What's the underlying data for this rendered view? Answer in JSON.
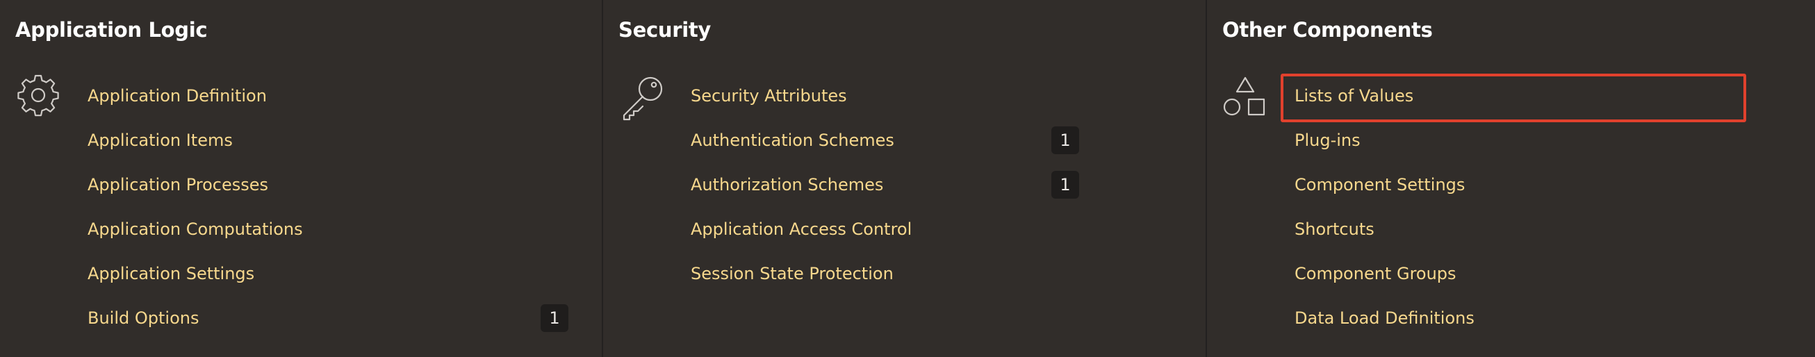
{
  "application_logic": {
    "title": "Application Logic",
    "icon": "gear-icon",
    "links": [
      {
        "label": "Application Definition"
      },
      {
        "label": "Application Items"
      },
      {
        "label": "Application Processes"
      },
      {
        "label": "Application Computations"
      },
      {
        "label": "Application Settings"
      },
      {
        "label": "Build Options",
        "count": "1"
      }
    ]
  },
  "security": {
    "title": "Security",
    "icon": "key-icon",
    "links": [
      {
        "label": "Security Attributes"
      },
      {
        "label": "Authentication Schemes",
        "count": "1"
      },
      {
        "label": "Authorization Schemes",
        "count": "1"
      },
      {
        "label": "Application Access Control"
      },
      {
        "label": "Session State Protection"
      }
    ]
  },
  "other_components": {
    "title": "Other Components",
    "icon": "shapes-icon",
    "links": [
      {
        "label": "Lists of Values",
        "highlighted": true
      },
      {
        "label": "Plug-ins"
      },
      {
        "label": "Component Settings"
      },
      {
        "label": "Shortcuts"
      },
      {
        "label": "Component Groups"
      },
      {
        "label": "Data Load Definitions"
      }
    ]
  },
  "colors": {
    "background": "#312d2a",
    "link": "#f7d88d",
    "title": "#ffffff",
    "badge_bg": "#1f1d1c",
    "highlight": "#e1412d"
  }
}
